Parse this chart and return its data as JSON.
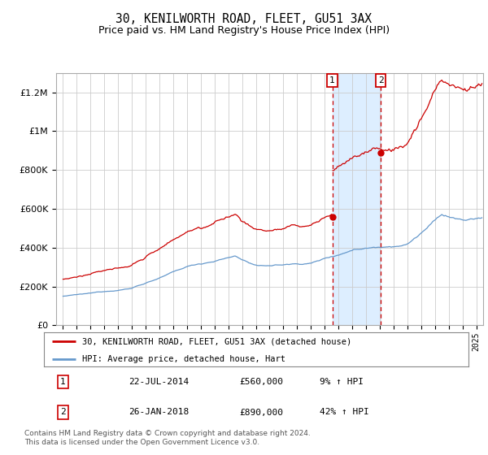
{
  "title": "30, KENILWORTH ROAD, FLEET, GU51 3AX",
  "subtitle": "Price paid vs. HM Land Registry's House Price Index (HPI)",
  "ytick_values": [
    0,
    200000,
    400000,
    600000,
    800000,
    1000000,
    1200000
  ],
  "ylim": [
    0,
    1300000
  ],
  "sale1_date": "22-JUL-2014",
  "sale1_price": 560000,
  "sale1_pct": "9%",
  "sale1_x": 2014.55,
  "sale2_date": "26-JAN-2018",
  "sale2_price": 890000,
  "sale2_pct": "42%",
  "sale2_x": 2018.07,
  "xlim_left": 1994.5,
  "xlim_right": 2025.5,
  "legend_line1": "30, KENILWORTH ROAD, FLEET, GU51 3AX (detached house)",
  "legend_line2": "HPI: Average price, detached house, Hart",
  "footnote": "Contains HM Land Registry data © Crown copyright and database right 2024.\nThis data is licensed under the Open Government Licence v3.0.",
  "property_color": "#cc0000",
  "hpi_color": "#6699cc",
  "shade_color": "#ddeeff",
  "grid_color": "#cccccc",
  "background_color": "#ffffff",
  "hpi_scale": 1.0,
  "prop_scale1": 1.12,
  "prop_scale2": 1.6
}
